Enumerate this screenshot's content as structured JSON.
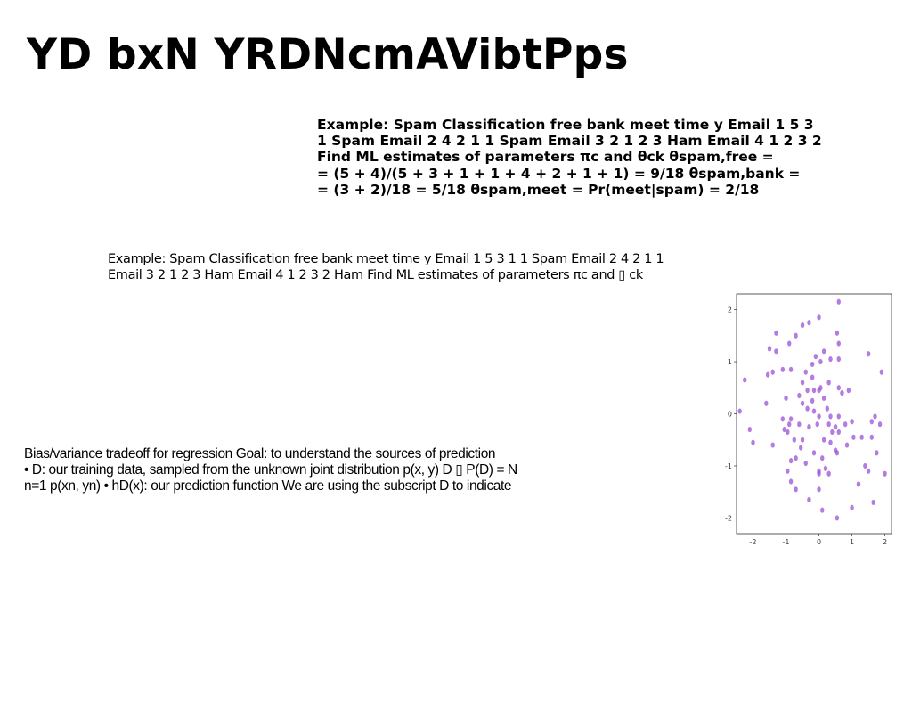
{
  "title": "YD bxN YRDNcmAVibtPps",
  "bold_block": {
    "lines": [
      "Example: Spam Classification free bank meet time y Email 1 5 3",
      "1 Spam Email 2 4 2 1 1 Spam Email 3 2 1 2 3 Ham Email 4 1 2 3 2",
      "Find ML estimates of parameters πc and θck θspam,free =",
      "= (5 + 4)/(5 + 3 + 1 + 1 + 4 + 2 + 1 + 1) = 9/18 θspam,bank =",
      "= (3 + 2)/18 = 5/18 θspam,meet = Pr(meet|spam) = 2/18"
    ]
  },
  "plain_block": {
    "lines": [
      "Example: Spam Classification free bank meet time y Email 1 5 3 1 1 Spam Email 2 4 2 1 1",
      "Email 3 2 1 2 3 Ham Email 4 1 2 3 2 Ham Find ML estimates of parameters πc and ▯ ck"
    ]
  },
  "narrow_block": {
    "lines": [
      "Bias/variance tradeoff for regression Goal: to understand the sources of prediction",
      "• D: our training data, sampled from the unknown joint distribution p(x, y) D ▯ P(D) = N",
      "n=1 p(xn, yn) • hD(x): our prediction function We are using the subscript D to indicate"
    ]
  },
  "chart_data": {
    "type": "scatter",
    "xlim": [
      -2.5,
      2.2
    ],
    "ylim": [
      -2.3,
      2.3
    ],
    "xticks": [
      "-2",
      "-1",
      "0",
      "1",
      "2"
    ],
    "yticks": [
      "2",
      "1",
      "0",
      "-1",
      "-2"
    ],
    "xtick_values": [
      -2,
      -1,
      0,
      1,
      2
    ],
    "ytick_values": [
      2,
      1,
      0,
      -1,
      -2
    ],
    "point_color": "#9b4fd6",
    "points": [
      [
        0.6,
        2.15
      ],
      [
        0.0,
        1.85
      ],
      [
        -0.3,
        1.75
      ],
      [
        -0.5,
        1.7
      ],
      [
        -0.7,
        1.5
      ],
      [
        -1.3,
        1.55
      ],
      [
        0.55,
        1.55
      ],
      [
        0.6,
        1.35
      ],
      [
        -0.9,
        1.35
      ],
      [
        -1.5,
        1.25
      ],
      [
        0.15,
        1.2
      ],
      [
        -0.1,
        1.1
      ],
      [
        0.35,
        1.05
      ],
      [
        0.6,
        1.05
      ],
      [
        -1.3,
        1.2
      ],
      [
        0.05,
        1.0
      ],
      [
        -0.2,
        0.95
      ],
      [
        1.5,
        1.15
      ],
      [
        -0.4,
        0.8
      ],
      [
        -0.85,
        0.85
      ],
      [
        -1.1,
        0.85
      ],
      [
        -1.4,
        0.8
      ],
      [
        -1.55,
        0.75
      ],
      [
        -2.25,
        0.65
      ],
      [
        1.9,
        0.8
      ],
      [
        -0.2,
        0.7
      ],
      [
        -0.5,
        0.6
      ],
      [
        0.3,
        0.6
      ],
      [
        0.05,
        0.5
      ],
      [
        -0.15,
        0.45
      ],
      [
        0.6,
        0.5
      ],
      [
        0.9,
        0.45
      ],
      [
        -0.35,
        0.45
      ],
      [
        0.0,
        0.45
      ],
      [
        -0.6,
        0.35
      ],
      [
        0.7,
        0.4
      ],
      [
        -1.0,
        0.3
      ],
      [
        -0.2,
        0.25
      ],
      [
        0.15,
        0.3
      ],
      [
        -0.5,
        0.2
      ],
      [
        -1.6,
        0.2
      ],
      [
        -0.35,
        0.1
      ],
      [
        0.25,
        0.1
      ],
      [
        -0.15,
        0.05
      ],
      [
        -2.4,
        0.05
      ],
      [
        0.0,
        -0.05
      ],
      [
        0.35,
        -0.05
      ],
      [
        0.6,
        -0.05
      ],
      [
        -1.1,
        -0.1
      ],
      [
        -0.85,
        -0.1
      ],
      [
        1.7,
        -0.05
      ],
      [
        -0.9,
        -0.2
      ],
      [
        -0.6,
        -0.2
      ],
      [
        -0.05,
        -0.2
      ],
      [
        0.8,
        -0.2
      ],
      [
        1.6,
        -0.15
      ],
      [
        -0.3,
        -0.25
      ],
      [
        0.3,
        -0.2
      ],
      [
        0.5,
        -0.25
      ],
      [
        1.0,
        -0.15
      ],
      [
        -2.1,
        -0.3
      ],
      [
        -0.95,
        -0.35
      ],
      [
        -1.05,
        -0.3
      ],
      [
        1.85,
        -0.2
      ],
      [
        0.4,
        -0.35
      ],
      [
        0.6,
        -0.35
      ],
      [
        -0.75,
        -0.5
      ],
      [
        -0.5,
        -0.5
      ],
      [
        0.15,
        -0.5
      ],
      [
        1.05,
        -0.45
      ],
      [
        1.3,
        -0.45
      ],
      [
        1.6,
        -0.45
      ],
      [
        -2.0,
        -0.55
      ],
      [
        -1.4,
        -0.6
      ],
      [
        0.35,
        -0.55
      ],
      [
        0.85,
        -0.6
      ],
      [
        -0.55,
        -0.65
      ],
      [
        -0.15,
        -0.75
      ],
      [
        0.5,
        -0.7
      ],
      [
        0.55,
        -0.75
      ],
      [
        -0.85,
        -0.9
      ],
      [
        -0.7,
        -0.85
      ],
      [
        0.1,
        -0.85
      ],
      [
        -0.4,
        -0.95
      ],
      [
        1.4,
        -1.0
      ],
      [
        1.75,
        -0.75
      ],
      [
        -0.95,
        -1.1
      ],
      [
        0.0,
        -1.1
      ],
      [
        0.0,
        -1.15
      ],
      [
        0.2,
        -1.05
      ],
      [
        0.3,
        -1.15
      ],
      [
        1.5,
        -1.1
      ],
      [
        2.0,
        -1.15
      ],
      [
        -0.85,
        -1.3
      ],
      [
        1.2,
        -1.35
      ],
      [
        -0.7,
        -1.45
      ],
      [
        0.0,
        -1.45
      ],
      [
        1.65,
        -1.7
      ],
      [
        -0.3,
        -1.65
      ],
      [
        1.0,
        -1.8
      ],
      [
        0.1,
        -1.85
      ],
      [
        0.55,
        -2.0
      ]
    ]
  }
}
